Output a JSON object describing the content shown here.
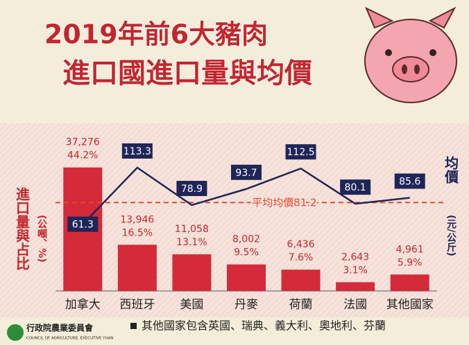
{
  "title": [
    "2019年前6大豬肉",
    "進口國進口量與均價"
  ],
  "chart_data": {
    "type": "bar_line",
    "categories": [
      "加拿大",
      "西班牙",
      "美國",
      "丹麥",
      "荷蘭",
      "法國",
      "其他國家"
    ],
    "series": [
      {
        "name": "進口量",
        "color": "#d42a3a",
        "values": [
          37276,
          13946,
          11058,
          8002,
          6436,
          2643,
          4961
        ],
        "value_labels": [
          "37,276",
          "13,946",
          "11,058",
          "8,002",
          "6,436",
          "2,643",
          "4,961"
        ]
      },
      {
        "name": "占比",
        "values": [
          44.2,
          16.5,
          13.1,
          9.5,
          7.6,
          3.1,
          5.9
        ],
        "value_labels": [
          "44.2%",
          "16.5%",
          "13.1%",
          "9.5%",
          "7.6%",
          "3.1%",
          "5.9%"
        ]
      },
      {
        "name": "均價",
        "color": "#1f2557",
        "axis": "y2",
        "values": [
          61.3,
          113.3,
          78.9,
          93.7,
          112.5,
          80.1,
          85.6
        ]
      }
    ],
    "ylim": [
      0,
      46000
    ],
    "y2lim": [
      0,
      140
    ],
    "ylabel": "進口量與占比",
    "ylabel_unit": "(公噸、%)",
    "y2label": "均價",
    "y2label_unit": "(元/公斤)",
    "reference_line": {
      "label": "平均均價",
      "value": 81.2,
      "color": "#e8452c"
    },
    "note": "其他國家包含英國、瑞典、義大利、奧地利、芬蘭"
  },
  "logo": {
    "name": "行政院農業委員會",
    "english": "COUNCIL OF AGRICULTURE, EXECUTIVE YUAN"
  }
}
